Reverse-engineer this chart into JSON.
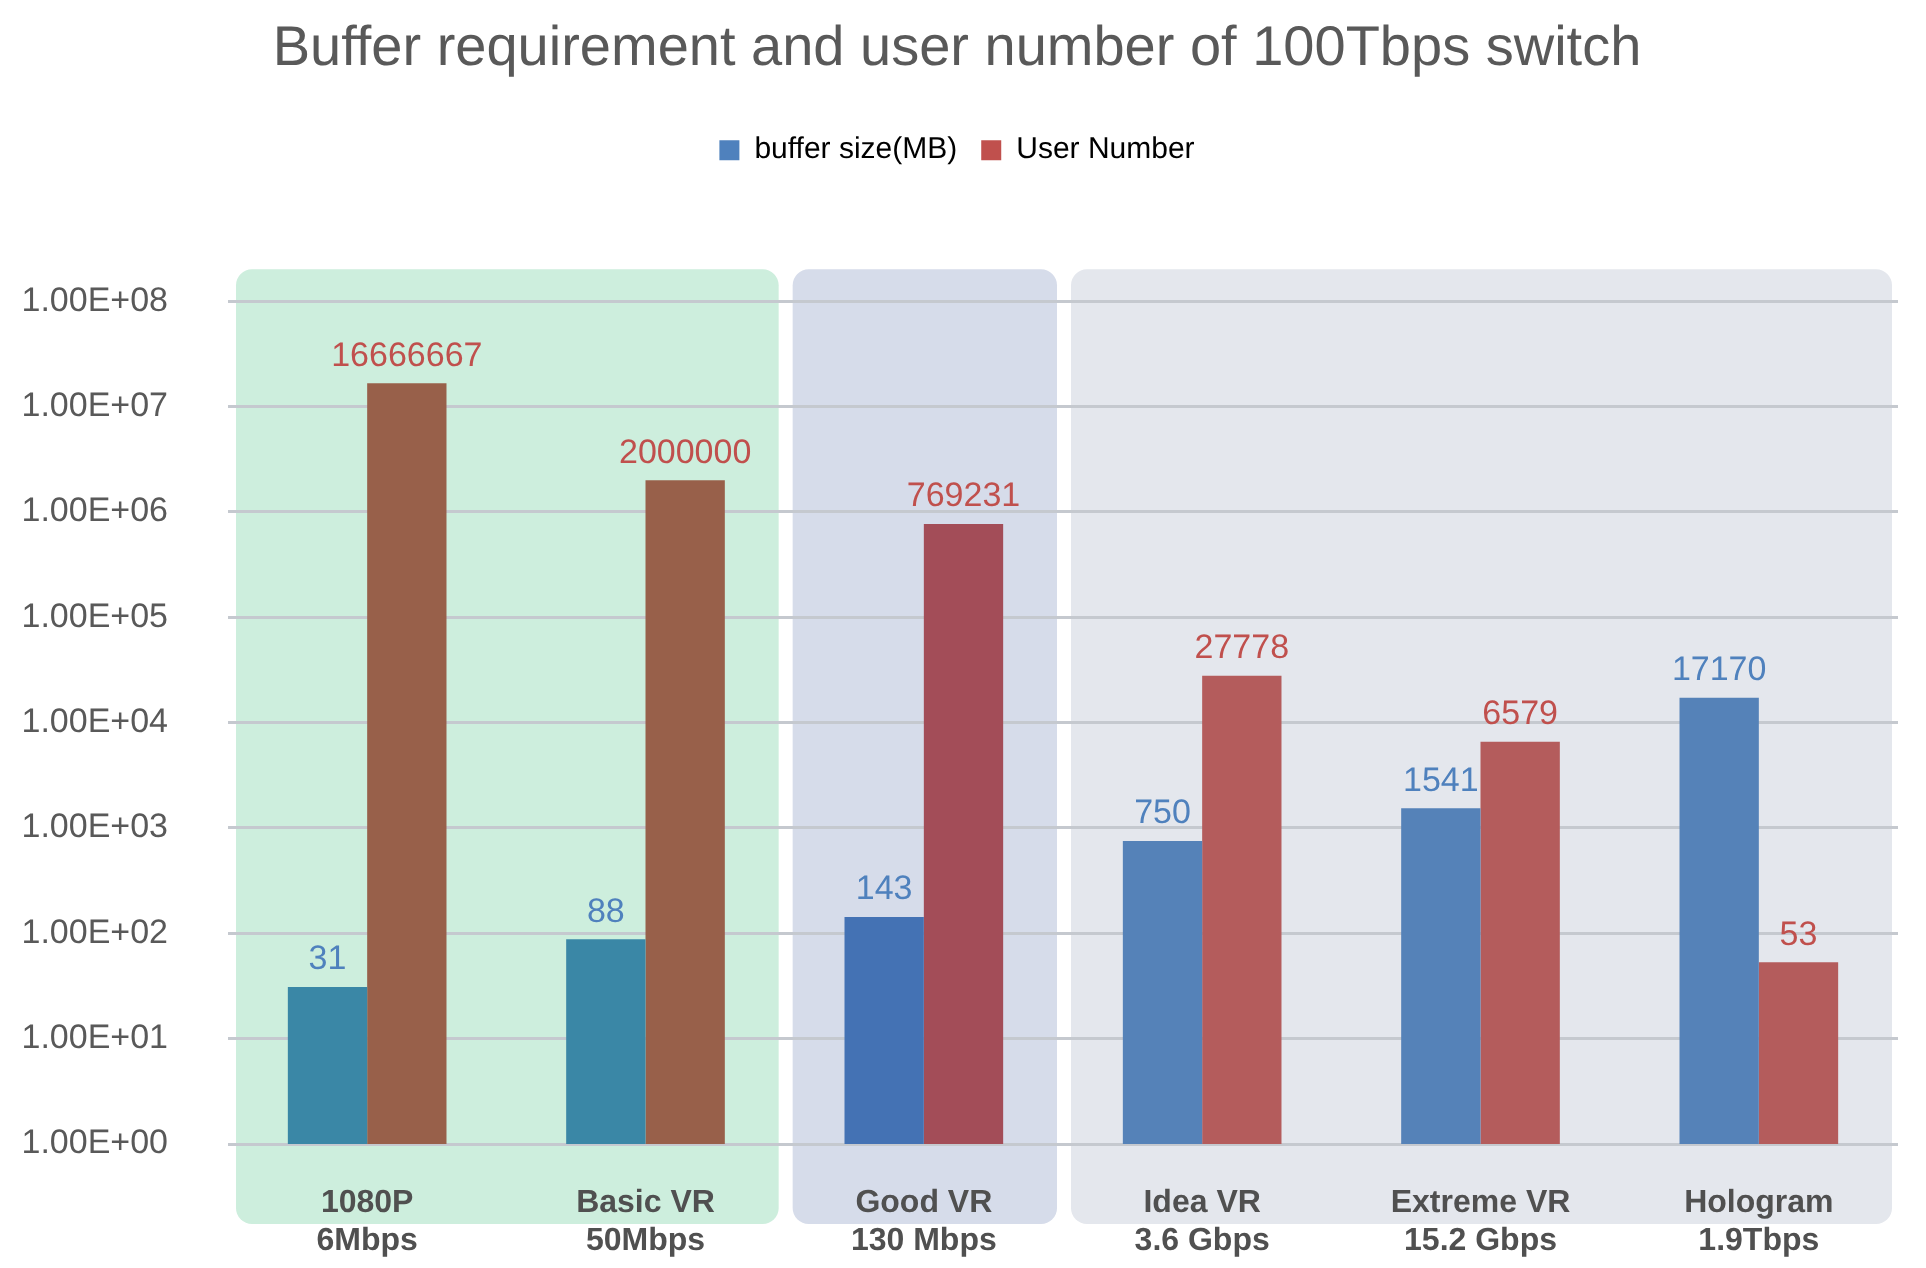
{
  "chart_data": {
    "type": "bar",
    "title": "Buffer requirement and user number of 100Tbps switch",
    "categories": [
      "1080P\n6Mbps",
      "Basic VR\n50Mbps",
      "Good VR\n130 Mbps",
      "Idea VR\n3.6 Gbps",
      "Extreme VR\n15.2 Gbps",
      "Hologram\n1.9Tbps"
    ],
    "series": [
      {
        "name": "buffer size(MB)",
        "color": "#4f81bd",
        "colors": [
          "#3a87a6",
          "#3a87a6",
          "#4472b4",
          "#5582b8",
          "#5582b8",
          "#5582b8"
        ],
        "values": [
          31,
          88,
          143,
          750,
          1541,
          17170
        ]
      },
      {
        "name": "User Number",
        "color": "#c0504d",
        "colors": [
          "#98604a",
          "#98604a",
          "#a34d58",
          "#b45c5c",
          "#b45c5c",
          "#b45c5c"
        ],
        "values": [
          16666667,
          2000000,
          769231,
          27778,
          6579,
          53
        ]
      }
    ],
    "log": "y",
    "ylim": [
      1,
      100000000
    ],
    "yticks": [
      {
        "value": 1,
        "label": "1.00E+00"
      },
      {
        "value": 10,
        "label": "1.00E+01"
      },
      {
        "value": 100,
        "label": "1.00E+02"
      },
      {
        "value": 1000,
        "label": "1.00E+03"
      },
      {
        "value": 10000,
        "label": "1.00E+04"
      },
      {
        "value": 100000,
        "label": "1.00E+05"
      },
      {
        "value": 1000000,
        "label": "1.00E+06"
      },
      {
        "value": 10000000,
        "label": "1.00E+07"
      },
      {
        "value": 100000000,
        "label": "1.00E+08"
      }
    ],
    "bands": [
      {
        "axis": "x",
        "from": "1080P\n6Mbps",
        "to": "Basic VR\n50Mbps",
        "color": "#cdeedd"
      },
      {
        "axis": "x",
        "from": "Good VR\n130 Mbps",
        "to": "Good VR\n130 Mbps",
        "color": "#d6dcea"
      },
      {
        "axis": "x",
        "from": "Idea VR\n3.6 Gbps",
        "to": "Hologram\n1.9Tbps",
        "color": "#e4e7ed"
      }
    ],
    "grid": "y",
    "legend": "top",
    "data_labels": true
  }
}
